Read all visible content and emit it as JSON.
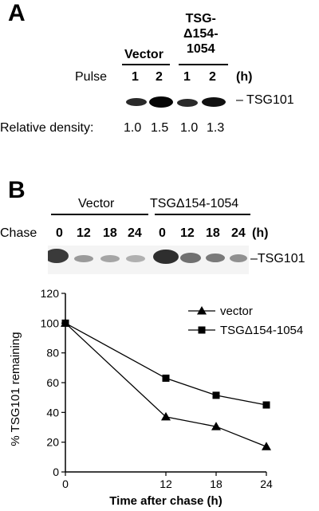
{
  "panel_a": {
    "letter": "A",
    "groups": [
      {
        "label": "Vector"
      },
      {
        "label_lines": [
          "TSG-",
          "Δ154-",
          "1054"
        ]
      }
    ],
    "pulse_label": "Pulse",
    "lanes": [
      "1",
      "2",
      "1",
      "2"
    ],
    "unit": "(h)",
    "band_label": "– TSG101",
    "density_label": "Relative density:",
    "densities": [
      "1.0",
      "1.5",
      "1.0",
      "1.3"
    ]
  },
  "panel_b": {
    "letter": "B",
    "groups": [
      "Vector",
      "TSGΔ154-1054"
    ],
    "chase_label": "Chase",
    "lanes": [
      "0",
      "12",
      "18",
      "24",
      "0",
      "12",
      "18",
      "24"
    ],
    "unit": "(h)",
    "band_label": "–TSG101"
  },
  "chart_data": {
    "type": "line",
    "xlabel": "Time after chase (h)",
    "ylabel": "% TSG101 remaining",
    "x": [
      0,
      12,
      18,
      24
    ],
    "xticks": [
      "0",
      "12",
      "18",
      "24"
    ],
    "yticks": [
      "0",
      "20",
      "40",
      "60",
      "80",
      "100",
      "120"
    ],
    "xlim": [
      0,
      24
    ],
    "ylim": [
      0,
      120
    ],
    "legend_position": "top-right",
    "series": [
      {
        "name": "vector",
        "marker": "triangle",
        "values": [
          100,
          37,
          30.5,
          17
        ]
      },
      {
        "name": "TSGΔ154-1054",
        "marker": "square",
        "values": [
          100,
          63,
          51.5,
          45
        ]
      }
    ]
  }
}
